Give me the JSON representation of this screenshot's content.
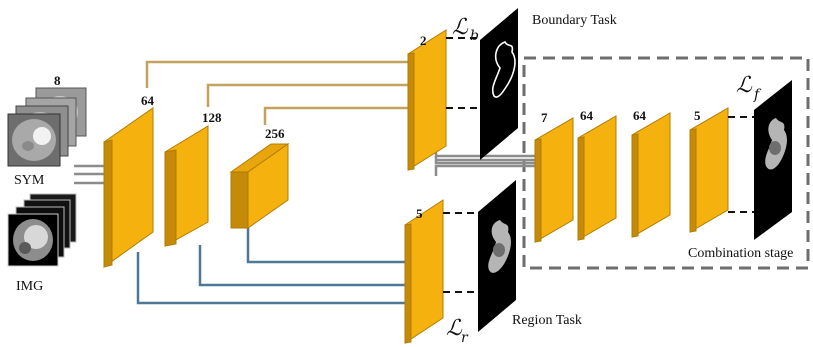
{
  "inputs": {
    "sym_label": "SYM",
    "sym_channels": "8",
    "img_label": "IMG"
  },
  "encoder": {
    "layer1_channels": "64",
    "layer2_channels": "128",
    "layer3_channels": "256"
  },
  "boundary_task": {
    "label": "Boundary Task",
    "channels": "2",
    "loss_symbol": "ℒ",
    "loss_subscript": "b"
  },
  "region_task": {
    "label": "Region Task",
    "channels": "5",
    "loss_symbol": "ℒ",
    "loss_subscript": "r"
  },
  "combination_stage": {
    "label": "Combination stage",
    "layer1_channels": "7",
    "layer2_channels": "64",
    "layer3_channels": "64",
    "output_channels": "5",
    "loss_symbol": "ℒ",
    "loss_subscript": "f"
  },
  "colors": {
    "slab_face": "#F5B20F",
    "slab_side": "#C58A08",
    "slab_top": "#E9A50C",
    "encoder_to_boundary_line": "#C2A25C",
    "encoder_to_region_line": "#4F7896",
    "task_to_combination_line": "#8C8C8C",
    "dashed_frame": "#6E6E6E"
  }
}
